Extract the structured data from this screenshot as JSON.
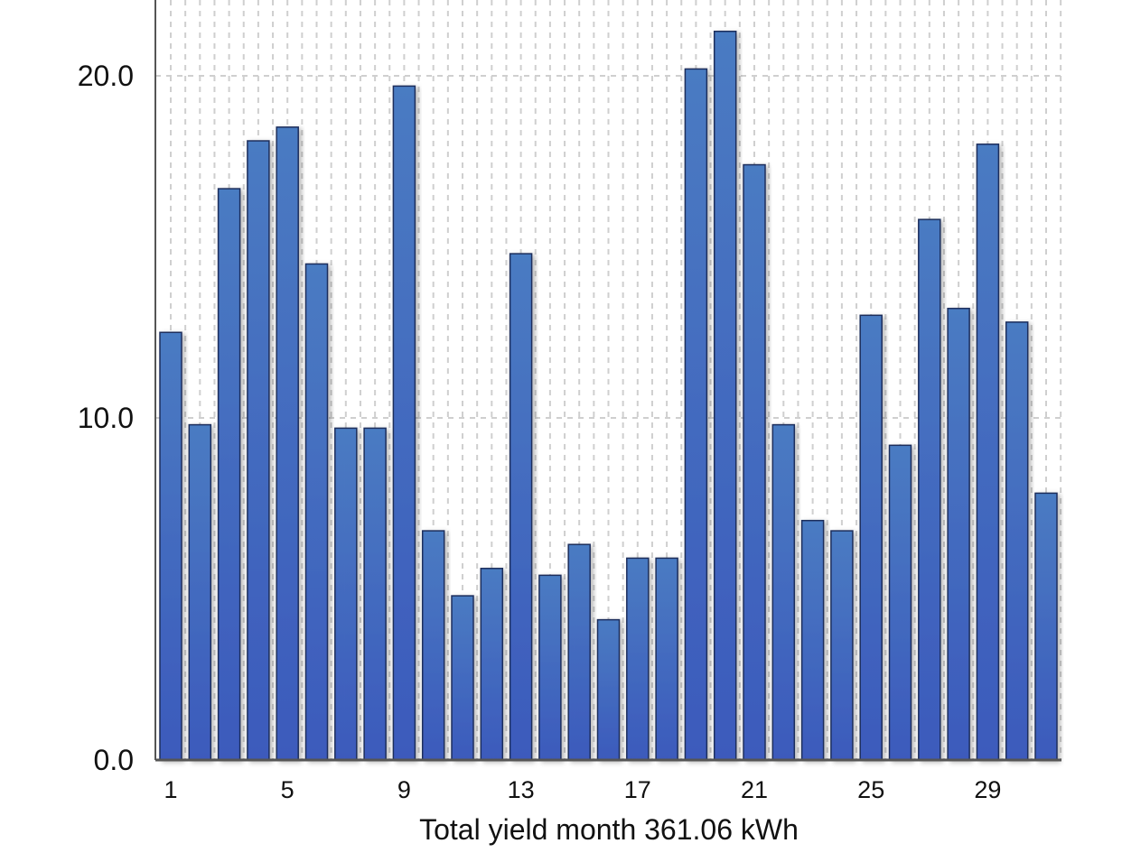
{
  "chart_data": {
    "type": "bar",
    "title": "",
    "xlabel": "Total yield month 361.06 kWh",
    "ylabel": "",
    "ylim": [
      0,
      22.2
    ],
    "y_ticks": [
      "0.0",
      "10.0",
      "20.0"
    ],
    "x_tick_labels": [
      "1",
      "5",
      "9",
      "13",
      "17",
      "21",
      "25",
      "29"
    ],
    "categories": [
      "1",
      "2",
      "3",
      "4",
      "5",
      "6",
      "7",
      "8",
      "9",
      "10",
      "11",
      "12",
      "13",
      "14",
      "15",
      "16",
      "17",
      "18",
      "19",
      "20",
      "21",
      "22",
      "23",
      "24",
      "25",
      "26",
      "27",
      "28",
      "29",
      "30",
      "31"
    ],
    "series": [
      {
        "values": [
          12.5,
          9.8,
          16.7,
          18.1,
          18.5,
          14.5,
          9.7,
          9.7,
          19.7,
          6.7,
          4.8,
          5.6,
          14.8,
          5.4,
          6.3,
          4.1,
          5.9,
          5.9,
          20.2,
          21.3,
          17.4,
          9.8,
          7.0,
          6.7,
          13.0,
          9.2,
          15.8,
          13.2,
          18.0,
          12.8,
          7.8
        ]
      }
    ],
    "grid": true,
    "legend": "none",
    "colors": {
      "bar_top": "#4a7bc2",
      "bar_bottom": "#3c5abc",
      "bar_stroke": "#1e2e5c",
      "grid": "#cfcfcf",
      "axis": "#555555"
    }
  }
}
